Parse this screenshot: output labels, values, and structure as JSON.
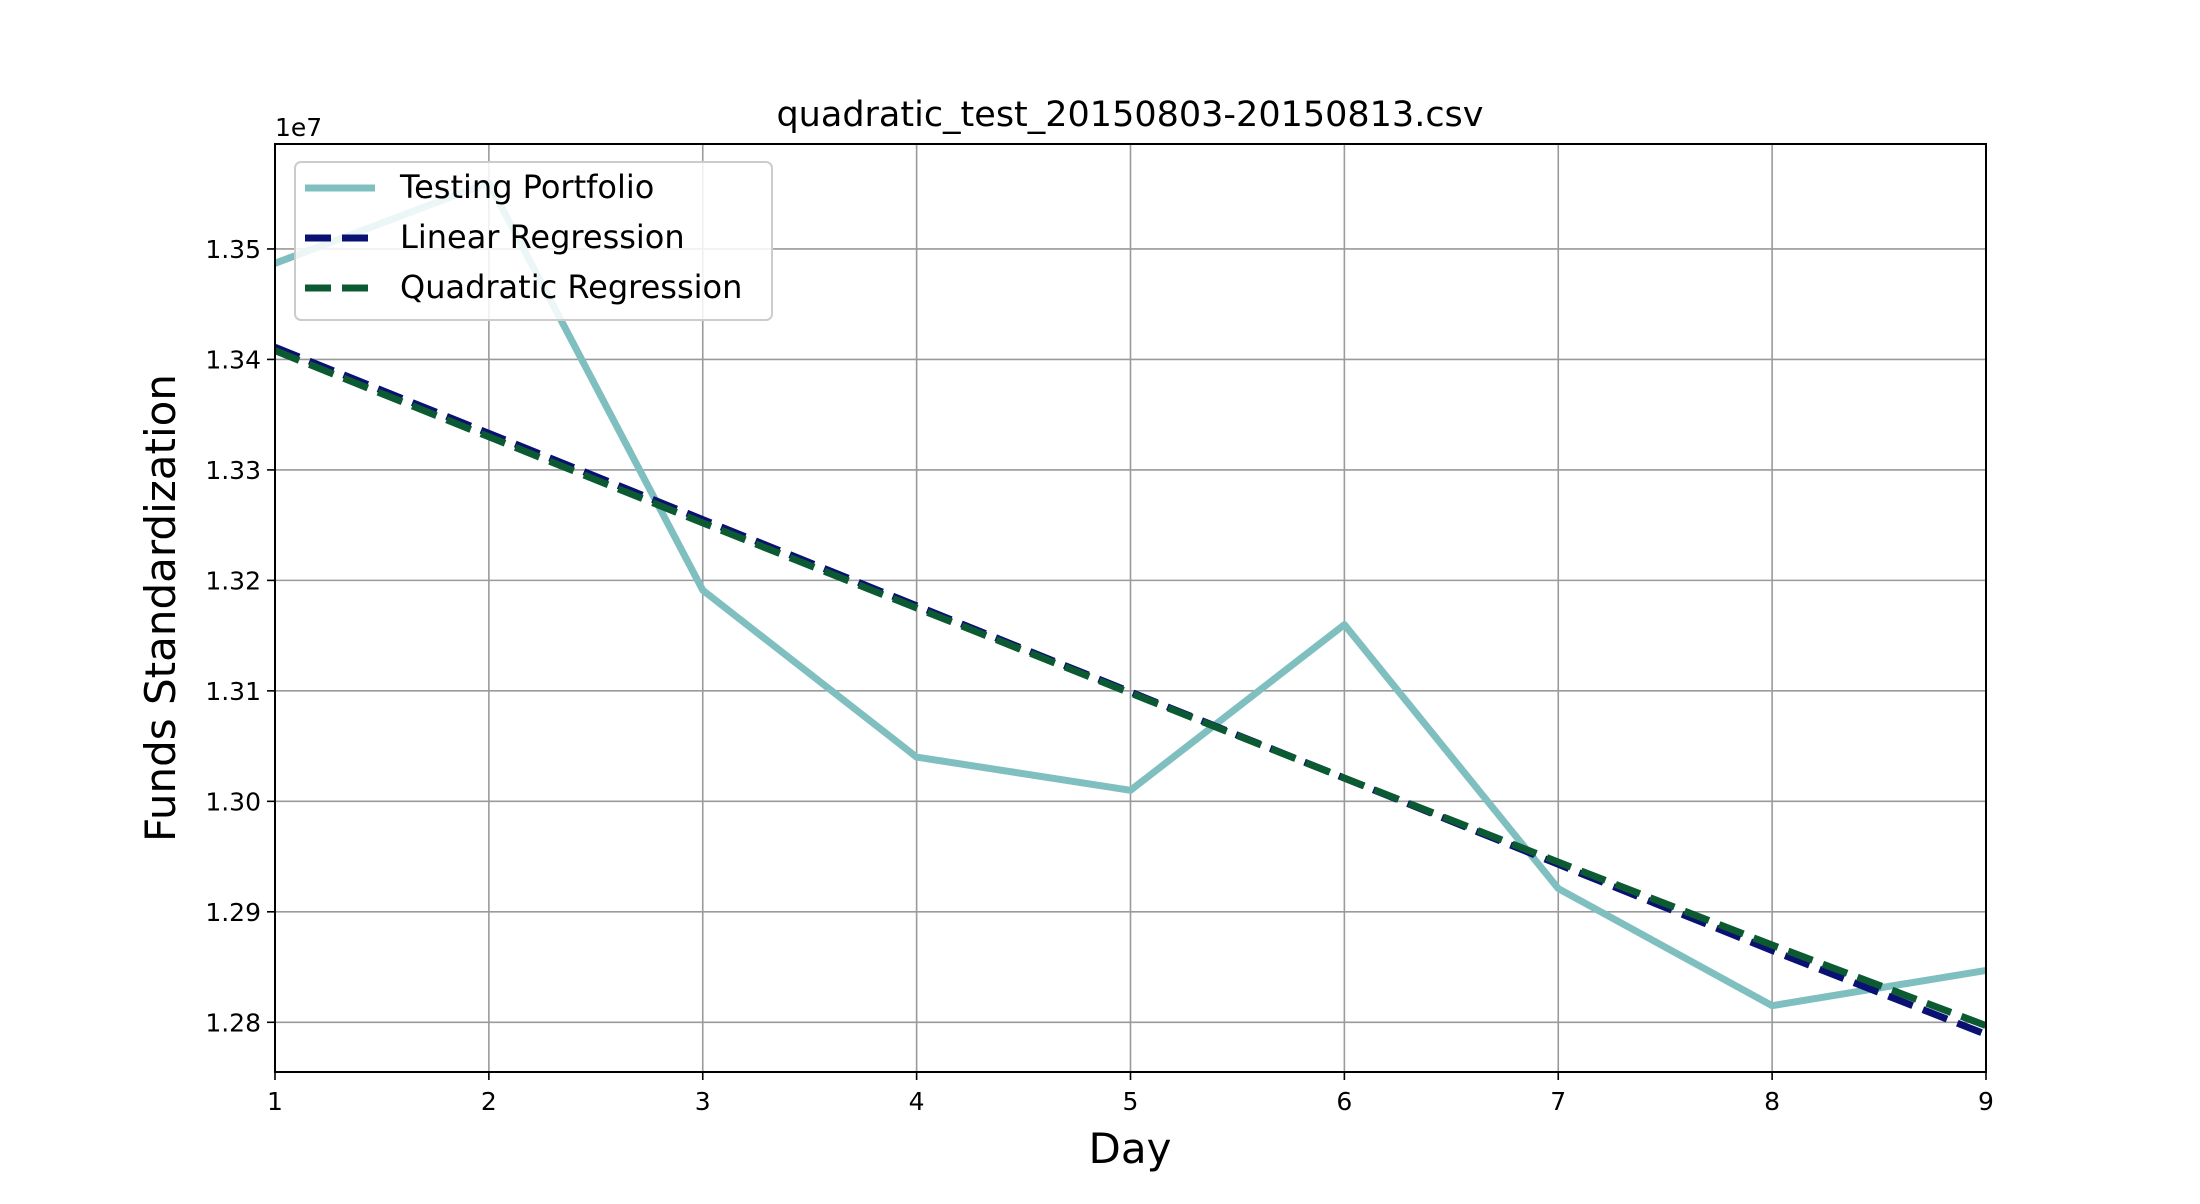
{
  "chart_data": {
    "type": "line",
    "title": "quadratic_test_20150803-20150813.csv",
    "xlabel": "Day",
    "ylabel": "Funds Standardization",
    "y_offset_label": "1e7",
    "y_scale": 10000000,
    "xlim": [
      1,
      9
    ],
    "ylim": [
      12755000,
      13595000
    ],
    "x_ticks": [
      1,
      2,
      3,
      4,
      5,
      6,
      7,
      8,
      9
    ],
    "x_tick_labels": [
      "1",
      "2",
      "3",
      "4",
      "5",
      "6",
      "7",
      "8",
      "9"
    ],
    "y_ticks": [
      12800000,
      12900000,
      13000000,
      13100000,
      13200000,
      13300000,
      13400000,
      13500000
    ],
    "y_tick_labels": [
      "1.28",
      "1.29",
      "1.30",
      "1.31",
      "1.32",
      "1.33",
      "1.34",
      "1.35"
    ],
    "grid": true,
    "legend_position": "top-left",
    "series": [
      {
        "name": "Testing Portfolio",
        "color": "#80bfc0",
        "style": "solid",
        "x": [
          1,
          2,
          3,
          4,
          5,
          6,
          7,
          8,
          9
        ],
        "y": [
          13487000,
          13560000,
          13191000,
          13040000,
          13010000,
          13160000,
          12921000,
          12815000,
          12847000
        ]
      },
      {
        "name": "Linear Regression",
        "color": "#0a1172",
        "style": "dashed",
        "x": [
          1,
          2,
          3,
          4,
          5,
          6,
          7,
          8,
          9
        ],
        "y": [
          13411000,
          13333000,
          13255000,
          13177000,
          13099000,
          13021000,
          12943000,
          12865000,
          12789000
        ]
      },
      {
        "name": "Quadratic Regression",
        "color": "#0b5a32",
        "style": "dashed",
        "x": [
          1,
          2,
          3,
          4,
          5,
          6,
          7,
          8,
          9
        ],
        "y": [
          13408000,
          13330000,
          13252000,
          13175000,
          13098000,
          13021000,
          12945000,
          12870000,
          12797000
        ]
      }
    ]
  }
}
